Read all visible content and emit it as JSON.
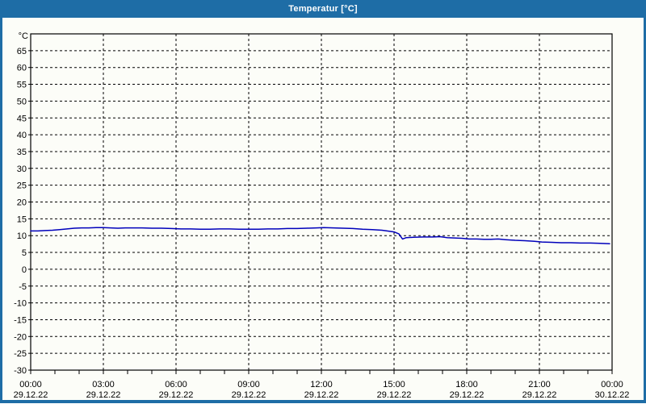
{
  "window": {
    "title": "Temperatur [°C]"
  },
  "colors": {
    "titlebar": "#1e6da6",
    "frame": "#1e6da6",
    "content_bg": "#fcfdf8",
    "plot_border": "#000000",
    "grid": "#000000",
    "text": "#000000",
    "title_text": "#ffffff",
    "line": "#0000bb"
  },
  "chart_data": {
    "type": "line",
    "title": "Temperatur [°C]",
    "unit_label": "°C",
    "grid": "dashed",
    "legend": "none",
    "y_axis": {
      "min": -30,
      "max": 70,
      "label_min": -30,
      "label_max": 65,
      "step": 5,
      "unit": "°C"
    },
    "x_axis": {
      "start_hour": 0,
      "end_hour": 24,
      "minor_tick_hours": 1,
      "major_tick_hours": 3,
      "ticks": [
        {
          "hour": 0,
          "time": "00:00",
          "date": "29.12.22"
        },
        {
          "hour": 3,
          "time": "03:00",
          "date": "29.12.22"
        },
        {
          "hour": 6,
          "time": "06:00",
          "date": "29.12.22"
        },
        {
          "hour": 9,
          "time": "09:00",
          "date": "29.12.22"
        },
        {
          "hour": 12,
          "time": "12:00",
          "date": "29.12.22"
        },
        {
          "hour": 15,
          "time": "15:00",
          "date": "29.12.22"
        },
        {
          "hour": 18,
          "time": "18:00",
          "date": "29.12.22"
        },
        {
          "hour": 21,
          "time": "21:00",
          "date": "29.12.22"
        },
        {
          "hour": 24,
          "time": "00:00",
          "date": "30.12.22"
        }
      ]
    },
    "series": [
      {
        "name": "Temperatur",
        "color": "#0000bb",
        "points": [
          [
            0.0,
            11.4
          ],
          [
            0.3,
            11.4
          ],
          [
            0.6,
            11.5
          ],
          [
            0.9,
            11.6
          ],
          [
            1.2,
            11.8
          ],
          [
            1.5,
            12.0
          ],
          [
            1.8,
            12.2
          ],
          [
            2.1,
            12.3
          ],
          [
            2.4,
            12.3
          ],
          [
            2.7,
            12.4
          ],
          [
            3.0,
            12.4
          ],
          [
            3.3,
            12.3
          ],
          [
            3.6,
            12.2
          ],
          [
            3.9,
            12.3
          ],
          [
            4.2,
            12.3
          ],
          [
            4.6,
            12.3
          ],
          [
            5.0,
            12.2
          ],
          [
            5.4,
            12.2
          ],
          [
            5.8,
            12.1
          ],
          [
            6.2,
            12.0
          ],
          [
            6.6,
            12.0
          ],
          [
            7.0,
            11.9
          ],
          [
            7.4,
            11.9
          ],
          [
            7.8,
            12.0
          ],
          [
            8.2,
            12.0
          ],
          [
            8.6,
            11.9
          ],
          [
            9.0,
            11.9
          ],
          [
            9.4,
            11.9
          ],
          [
            9.8,
            12.0
          ],
          [
            10.2,
            12.0
          ],
          [
            10.6,
            12.1
          ],
          [
            11.0,
            12.1
          ],
          [
            11.4,
            12.2
          ],
          [
            11.8,
            12.3
          ],
          [
            12.1,
            12.4
          ],
          [
            12.5,
            12.3
          ],
          [
            12.9,
            12.2
          ],
          [
            13.3,
            12.1
          ],
          [
            13.7,
            11.9
          ],
          [
            14.1,
            11.8
          ],
          [
            14.5,
            11.6
          ],
          [
            14.8,
            11.3
          ],
          [
            15.0,
            11.1
          ],
          [
            15.2,
            10.5
          ],
          [
            15.35,
            9.0
          ],
          [
            15.5,
            9.4
          ],
          [
            15.8,
            9.5
          ],
          [
            16.2,
            9.6
          ],
          [
            16.6,
            9.6
          ],
          [
            16.9,
            9.7
          ],
          [
            17.2,
            9.4
          ],
          [
            17.5,
            9.3
          ],
          [
            17.8,
            9.2
          ],
          [
            18.1,
            9.0
          ],
          [
            18.4,
            9.0
          ],
          [
            18.7,
            8.9
          ],
          [
            19.0,
            8.9
          ],
          [
            19.3,
            9.0
          ],
          [
            19.6,
            8.8
          ],
          [
            20.0,
            8.6
          ],
          [
            20.4,
            8.5
          ],
          [
            20.8,
            8.3
          ],
          [
            21.1,
            8.1
          ],
          [
            21.5,
            8.0
          ],
          [
            21.9,
            7.9
          ],
          [
            22.3,
            7.9
          ],
          [
            22.7,
            7.8
          ],
          [
            23.1,
            7.8
          ],
          [
            23.5,
            7.7
          ],
          [
            23.9,
            7.6
          ]
        ]
      }
    ]
  }
}
